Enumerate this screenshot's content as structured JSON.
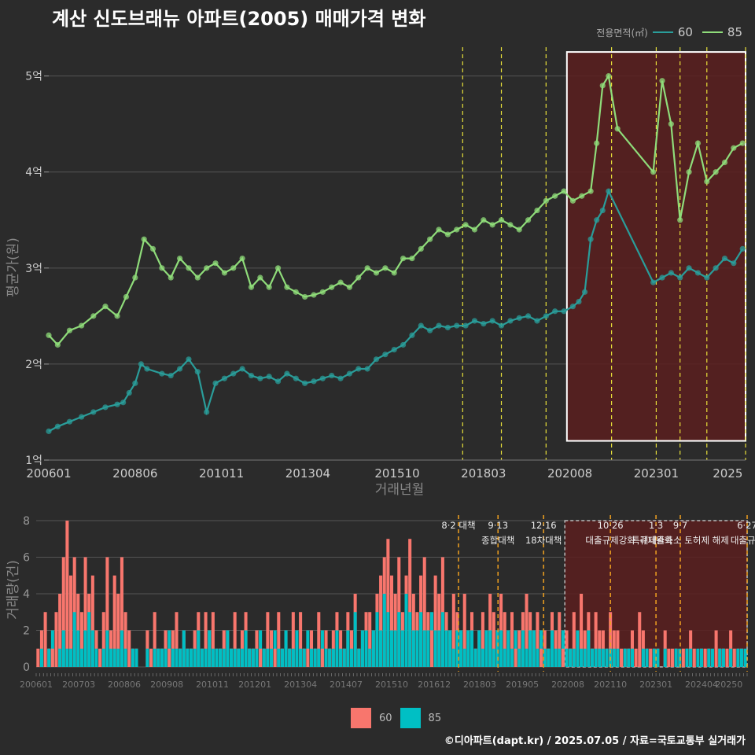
{
  "title": "계산 신도브래뉴 아파트(2005) 매매가격 변화",
  "legend_title": "전용면적(㎡)",
  "colors": {
    "s60": "#2a9d9a",
    "s85": "#8fdc7a",
    "bar60": "#f8766d",
    "bar85": "#00bfc4",
    "shade": "#5a1f1f",
    "vline": "#e8e03a",
    "vline_bottom": "#f0a020"
  },
  "footer": "©디아파트(dapt.kr) / 2025.07.05 / 자료=국토교통부 실거래가",
  "chart_data": [
    {
      "type": "line",
      "ylabel": "평균가(원)",
      "xlabel": "거래년월",
      "x_ticks": [
        "200601",
        "200806",
        "201011",
        "201304",
        "201510",
        "201803",
        "202008",
        "202301",
        "2025"
      ],
      "y_ticks": [
        "1억",
        "2억",
        "3억",
        "4억",
        "5억"
      ],
      "ylim": [
        1,
        5.3
      ],
      "highlight_box": {
        "start": "202007",
        "end": "202507"
      },
      "events": [
        "201708",
        "201809",
        "201912",
        "202110",
        "202301",
        "202309",
        "202406",
        "202507"
      ],
      "series": [
        {
          "name": "60",
          "points": [
            [
              "2006-01",
              1.3
            ],
            [
              "2006-04",
              1.35
            ],
            [
              "2006-08",
              1.4
            ],
            [
              "2006-12",
              1.45
            ],
            [
              "2007-04",
              1.5
            ],
            [
              "2007-08",
              1.55
            ],
            [
              "2007-12",
              1.58
            ],
            [
              "2008-02",
              1.6
            ],
            [
              "2008-04",
              1.7
            ],
            [
              "2008-06",
              1.8
            ],
            [
              "2008-08",
              2.0
            ],
            [
              "2008-10",
              1.95
            ],
            [
              "2009-03",
              1.9
            ],
            [
              "2009-06",
              1.88
            ],
            [
              "2009-09",
              1.95
            ],
            [
              "2009-12",
              2.05
            ],
            [
              "2010-03",
              1.92
            ],
            [
              "2010-06",
              1.5
            ],
            [
              "2010-09",
              1.8
            ],
            [
              "2010-12",
              1.85
            ],
            [
              "2011-03",
              1.9
            ],
            [
              "2011-06",
              1.95
            ],
            [
              "2011-09",
              1.88
            ],
            [
              "2011-12",
              1.85
            ],
            [
              "2012-03",
              1.87
            ],
            [
              "2012-06",
              1.82
            ],
            [
              "2012-09",
              1.9
            ],
            [
              "2012-12",
              1.85
            ],
            [
              "2013-03",
              1.8
            ],
            [
              "2013-06",
              1.82
            ],
            [
              "2013-09",
              1.85
            ],
            [
              "2013-12",
              1.88
            ],
            [
              "2014-03",
              1.85
            ],
            [
              "2014-06",
              1.9
            ],
            [
              "2014-09",
              1.95
            ],
            [
              "2014-12",
              1.95
            ],
            [
              "2015-03",
              2.05
            ],
            [
              "2015-06",
              2.1
            ],
            [
              "2015-09",
              2.15
            ],
            [
              "2015-12",
              2.2
            ],
            [
              "2016-03",
              2.3
            ],
            [
              "2016-06",
              2.4
            ],
            [
              "2016-09",
              2.35
            ],
            [
              "2016-12",
              2.4
            ],
            [
              "2017-03",
              2.38
            ],
            [
              "2017-06",
              2.4
            ],
            [
              "2017-09",
              2.4
            ],
            [
              "2017-12",
              2.45
            ],
            [
              "2018-03",
              2.42
            ],
            [
              "2018-06",
              2.45
            ],
            [
              "2018-09",
              2.4
            ],
            [
              "2018-12",
              2.45
            ],
            [
              "2019-03",
              2.48
            ],
            [
              "2019-06",
              2.5
            ],
            [
              "2019-09",
              2.45
            ],
            [
              "2019-12",
              2.5
            ],
            [
              "2020-03",
              2.55
            ],
            [
              "2020-06",
              2.55
            ],
            [
              "2020-09",
              2.6
            ],
            [
              "2020-11",
              2.65
            ],
            [
              "2021-01",
              2.75
            ],
            [
              "2021-03",
              3.3
            ],
            [
              "2021-05",
              3.5
            ],
            [
              "2021-07",
              3.6
            ],
            [
              "2021-09",
              3.8
            ],
            [
              "2022-12",
              2.85
            ],
            [
              "2023-03",
              2.9
            ],
            [
              "2023-06",
              2.95
            ],
            [
              "2023-09",
              2.9
            ],
            [
              "2023-12",
              3.0
            ],
            [
              "2024-03",
              2.95
            ],
            [
              "2024-06",
              2.9
            ],
            [
              "2024-09",
              3.0
            ],
            [
              "2024-12",
              3.1
            ],
            [
              "2025-03",
              3.05
            ],
            [
              "2025-06",
              3.2
            ]
          ]
        },
        {
          "name": "85",
          "points": [
            [
              "2006-01",
              2.3
            ],
            [
              "2006-04",
              2.2
            ],
            [
              "2006-08",
              2.35
            ],
            [
              "2006-12",
              2.4
            ],
            [
              "2007-04",
              2.5
            ],
            [
              "2007-08",
              2.6
            ],
            [
              "2007-12",
              2.5
            ],
            [
              "2008-03",
              2.7
            ],
            [
              "2008-06",
              2.9
            ],
            [
              "2008-09",
              3.3
            ],
            [
              "2008-12",
              3.2
            ],
            [
              "2009-03",
              3.0
            ],
            [
              "2009-06",
              2.9
            ],
            [
              "2009-09",
              3.1
            ],
            [
              "2009-12",
              3.0
            ],
            [
              "2010-03",
              2.9
            ],
            [
              "2010-06",
              3.0
            ],
            [
              "2010-09",
              3.05
            ],
            [
              "2010-12",
              2.95
            ],
            [
              "2011-03",
              3.0
            ],
            [
              "2011-06",
              3.1
            ],
            [
              "2011-09",
              2.8
            ],
            [
              "2011-12",
              2.9
            ],
            [
              "2012-03",
              2.8
            ],
            [
              "2012-06",
              3.0
            ],
            [
              "2012-09",
              2.8
            ],
            [
              "2012-12",
              2.75
            ],
            [
              "2013-03",
              2.7
            ],
            [
              "2013-06",
              2.72
            ],
            [
              "2013-09",
              2.75
            ],
            [
              "2013-12",
              2.8
            ],
            [
              "2014-03",
              2.85
            ],
            [
              "2014-06",
              2.8
            ],
            [
              "2014-09",
              2.9
            ],
            [
              "2014-12",
              3.0
            ],
            [
              "2015-03",
              2.95
            ],
            [
              "2015-06",
              3.0
            ],
            [
              "2015-09",
              2.95
            ],
            [
              "2015-12",
              3.1
            ],
            [
              "2016-03",
              3.1
            ],
            [
              "2016-06",
              3.2
            ],
            [
              "2016-09",
              3.3
            ],
            [
              "2016-12",
              3.4
            ],
            [
              "2017-03",
              3.35
            ],
            [
              "2017-06",
              3.4
            ],
            [
              "2017-09",
              3.45
            ],
            [
              "2017-12",
              3.4
            ],
            [
              "2018-03",
              3.5
            ],
            [
              "2018-06",
              3.45
            ],
            [
              "2018-09",
              3.5
            ],
            [
              "2018-12",
              3.45
            ],
            [
              "2019-03",
              3.4
            ],
            [
              "2019-06",
              3.5
            ],
            [
              "2019-09",
              3.6
            ],
            [
              "2019-12",
              3.7
            ],
            [
              "2020-03",
              3.75
            ],
            [
              "2020-06",
              3.8
            ],
            [
              "2020-09",
              3.7
            ],
            [
              "2020-12",
              3.75
            ],
            [
              "2021-03",
              3.8
            ],
            [
              "2021-05",
              4.3
            ],
            [
              "2021-07",
              4.9
            ],
            [
              "2021-09",
              5.0
            ],
            [
              "2021-12",
              4.45
            ],
            [
              "2022-12",
              4.0
            ],
            [
              "2023-03",
              4.95
            ],
            [
              "2023-06",
              4.5
            ],
            [
              "2023-09",
              3.5
            ],
            [
              "2023-12",
              4.0
            ],
            [
              "2024-03",
              4.3
            ],
            [
              "2024-06",
              3.9
            ],
            [
              "2024-09",
              4.0
            ],
            [
              "2024-12",
              4.1
            ],
            [
              "2025-03",
              4.25
            ],
            [
              "2025-06",
              4.3
            ]
          ]
        }
      ]
    },
    {
      "type": "bar",
      "ylabel": "거래량(건)",
      "y_ticks": [
        "0",
        "2",
        "4",
        "6",
        "8"
      ],
      "ylim": [
        0,
        8.3
      ],
      "x_ticks": [
        "200601",
        "200703",
        "200806",
        "200908",
        "201011",
        "201201",
        "201304",
        "201407",
        "201510",
        "201612",
        "201803",
        "201905",
        "202008",
        "202110",
        "202301",
        "202404",
        "20250"
      ],
      "highlight_box": {
        "start": "202007",
        "end": "202507"
      },
      "events": [
        {
          "date": "201708",
          "label1": "8·2 대책",
          "label2": ""
        },
        {
          "date": "201809",
          "label1": "9·13",
          "label2": "종합대책"
        },
        {
          "date": "201912",
          "label1": "12·16",
          "label2": "18차대책"
        },
        {
          "date": "202110",
          "label1": "10·26",
          "label2": "대출규제강화"
        },
        {
          "date": "202301",
          "label1": "1·3",
          "label2": "규제완화"
        },
        {
          "date": "202309",
          "label1": "9·7",
          "label2": "특례대출축소 토허제 해제"
        },
        {
          "date": "202507",
          "label1": "6·27",
          "label2": "대출규제"
        }
      ],
      "series": [
        {
          "name": "60",
          "values": [
            1,
            2,
            3,
            1,
            1,
            3,
            4,
            6,
            8,
            5,
            6,
            4,
            3,
            6,
            4,
            5,
            2,
            1,
            3,
            6,
            2,
            5,
            4,
            6,
            3,
            2,
            1,
            1,
            0,
            0,
            2,
            1,
            3,
            1,
            1,
            2,
            1,
            2,
            3,
            1,
            2,
            1,
            1,
            2,
            3,
            1,
            3,
            2,
            3,
            1,
            1,
            2,
            2,
            1,
            3,
            1,
            2,
            3,
            1,
            1,
            2,
            1,
            1,
            3,
            2,
            1,
            3,
            1,
            2,
            1,
            3,
            2,
            3,
            1,
            1,
            2,
            1,
            3,
            1,
            2,
            1,
            2,
            3,
            2,
            1,
            3,
            2,
            4,
            1,
            2,
            3,
            3,
            2,
            4,
            5,
            6,
            7,
            5,
            4,
            6,
            3,
            5,
            7,
            4,
            3,
            5,
            6,
            3,
            2,
            5,
            4,
            6,
            3,
            2,
            4,
            3,
            2,
            4,
            2,
            3,
            1,
            2,
            3,
            2,
            4,
            3,
            2,
            4,
            3,
            2,
            3,
            1,
            2,
            3,
            4,
            3,
            2,
            3,
            1,
            2,
            1,
            3,
            2,
            3,
            1,
            2,
            1,
            3,
            2,
            4,
            2,
            3,
            1,
            3,
            2,
            2,
            1,
            3,
            2,
            2,
            1,
            1,
            1,
            2,
            1,
            3,
            2,
            1,
            1,
            1,
            1,
            0,
            2,
            1,
            1,
            1,
            0,
            1,
            1,
            2,
            1,
            0,
            1,
            1,
            1,
            0,
            2,
            1,
            1,
            1,
            2,
            1,
            1,
            1,
            0
          ]
        },
        {
          "name": "85",
          "values": [
            0,
            1,
            0,
            1,
            2,
            0,
            1,
            2,
            1,
            1,
            3,
            2,
            1,
            2,
            3,
            2,
            1,
            0,
            1,
            2,
            1,
            1,
            1,
            2,
            1,
            0,
            1,
            1,
            0,
            0,
            1,
            0,
            1,
            1,
            1,
            1,
            2,
            1,
            1,
            1,
            2,
            1,
            1,
            1,
            2,
            1,
            1,
            2,
            1,
            1,
            1,
            1,
            2,
            1,
            1,
            1,
            1,
            2,
            1,
            1,
            1,
            2,
            1,
            1,
            1,
            2,
            1,
            1,
            2,
            1,
            1,
            2,
            1,
            1,
            2,
            1,
            1,
            1,
            2,
            1,
            1,
            1,
            2,
            1,
            1,
            2,
            1,
            3,
            1,
            2,
            2,
            1,
            2,
            3,
            2,
            4,
            3,
            2,
            2,
            3,
            2,
            4,
            3,
            2,
            2,
            3,
            2,
            2,
            3,
            2,
            2,
            3,
            2,
            2,
            1,
            2,
            2,
            1,
            2,
            2,
            1,
            2,
            1,
            2,
            2,
            1,
            2,
            2,
            1,
            2,
            1,
            2,
            1,
            2,
            1,
            2,
            2,
            1,
            2,
            1,
            1,
            2,
            1,
            1,
            2,
            1,
            1,
            1,
            2,
            1,
            1,
            2,
            1,
            1,
            1,
            1,
            1,
            1,
            1,
            1,
            0,
            1,
            1,
            1,
            0,
            0,
            1,
            1,
            0,
            1,
            1,
            0,
            1,
            0,
            0,
            1,
            1,
            0,
            1,
            1,
            0,
            1,
            1,
            0,
            1,
            1,
            0,
            1,
            1,
            0,
            1,
            0,
            1,
            1,
            1,
            0
          ]
        }
      ]
    }
  ]
}
